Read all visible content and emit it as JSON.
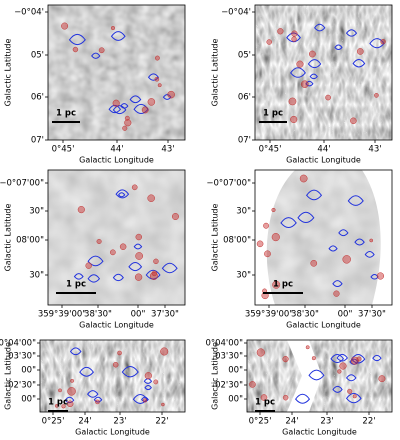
{
  "panels": [
    {
      "y_label": "Galactic Latitude",
      "x_label": "Galactic Longitude",
      "y_ticks": [
        "−0°04'",
        "05'",
        "06'",
        "07'"
      ],
      "x_ticks": [
        "0°45'",
        "44'",
        "43'"
      ],
      "scale_bar": "1 pc"
    },
    {
      "y_label": "Galactic Latitude",
      "x_label": "Galactic Longitude",
      "y_ticks": [
        "−0°04'",
        "05'",
        "06'",
        "07'"
      ],
      "x_ticks": [
        "0°45'",
        "44'",
        "43'"
      ],
      "scale_bar": "1 pc"
    },
    {
      "y_label": "Galactic Latitude",
      "x_label": "Galactic Longitude",
      "y_ticks": [
        "−0°07'00\"",
        "30\"",
        "08'00\"",
        "30\""
      ],
      "x_ticks": [
        "359°39'00\"",
        "38'30\"",
        "00\"",
        "37'30\""
      ],
      "scale_bar": "1 pc"
    },
    {
      "y_label": "Galactic Latitude",
      "x_label": "Galactic Longitude",
      "y_ticks": [
        "−0°07'00\"",
        "30\"",
        "08'00\"",
        "30\""
      ],
      "x_ticks": [
        "359°39'00\"",
        "38'30\"",
        "00\"",
        "37'30\""
      ],
      "scale_bar": "1 pc"
    },
    {
      "y_label": "Galactic Latitude",
      "x_label": "Galactic Longitude",
      "y_ticks": [
        "0°04'00\"",
        "03'30\"",
        "00\"",
        "02'30\"",
        "00\""
      ],
      "x_ticks": [
        "0°25'",
        "24'",
        "23'",
        "22'"
      ],
      "scale_bar": "1 pc"
    },
    {
      "y_label": "Galactic Latitude",
      "x_label": "Galactic Longitude",
      "y_ticks": [
        "0°04'00\"",
        "03'30\"",
        "00\"",
        "02'30\"",
        "00\""
      ],
      "x_ticks": [
        "0°25'",
        "24'",
        "23'",
        "22'"
      ],
      "scale_bar": "1 pc"
    }
  ]
}
